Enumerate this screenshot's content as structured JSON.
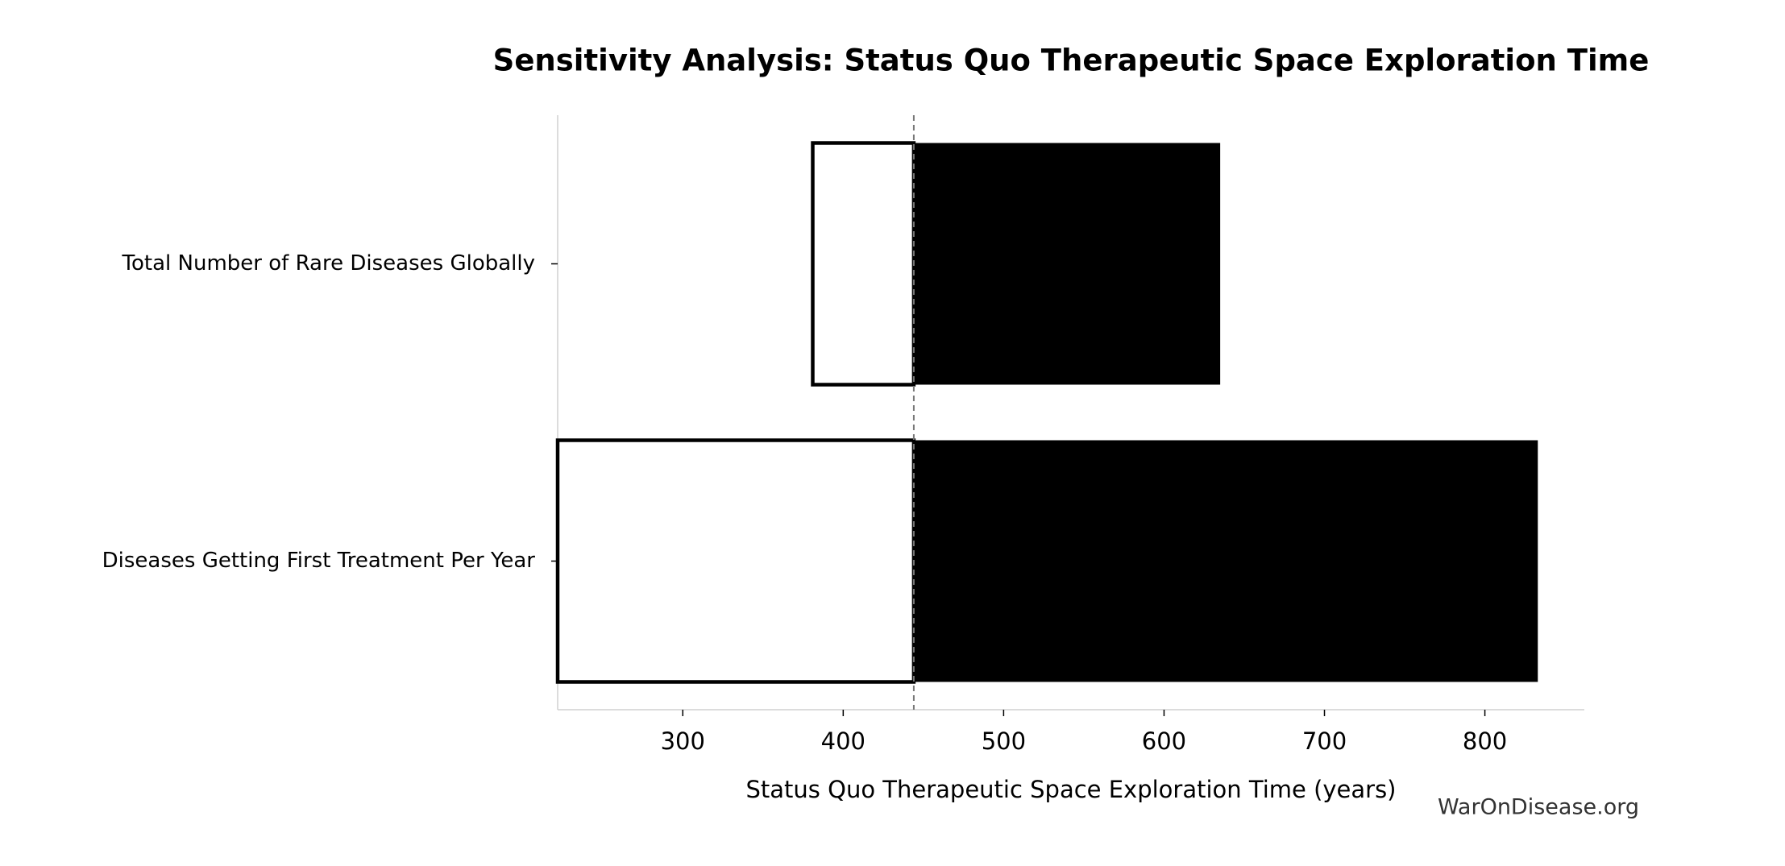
{
  "chart_data": {
    "type": "tornado",
    "title": "Sensitivity Analysis: Status Quo Therapeutic Space Exploration Time",
    "xlabel": "Status Quo Therapeutic Space Exploration Time (years)",
    "categories": [
      "Total Number of Rare Diseases Globally",
      "Diseases Getting First Treatment Per Year"
    ],
    "baseline": 444,
    "series": [
      {
        "color": "#ffffff",
        "values": [
          381,
          222
        ]
      },
      {
        "color": "#000000",
        "values": [
          635,
          833
        ]
      }
    ],
    "xlim": [
      222,
      862
    ],
    "xticks": [
      300,
      400,
      500,
      600,
      700,
      800
    ]
  },
  "watermark": "WarOnDisease.org"
}
